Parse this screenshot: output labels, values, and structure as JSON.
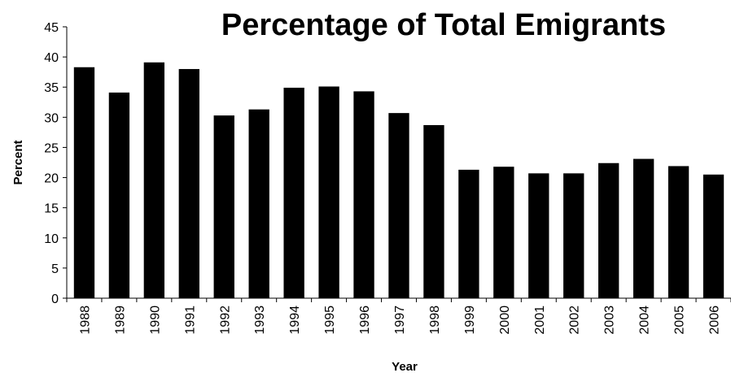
{
  "chart_data": {
    "type": "bar",
    "title": "Percentage of Total Emigrants",
    "xlabel": "Year",
    "ylabel": "Percent",
    "categories": [
      "1988",
      "1989",
      "1990",
      "1991",
      "1992",
      "1993",
      "1994",
      "1995",
      "1996",
      "1997",
      "1998",
      "1999",
      "2000",
      "2001",
      "2002",
      "2003",
      "2004",
      "2005",
      "2006"
    ],
    "values": [
      38.3,
      34.1,
      39.1,
      38.0,
      30.3,
      31.3,
      34.9,
      35.1,
      34.3,
      30.7,
      28.7,
      21.3,
      21.8,
      20.7,
      20.7,
      22.4,
      23.1,
      21.9,
      20.5
    ],
    "ylim": [
      0,
      45
    ],
    "yticks": [
      0,
      5,
      10,
      15,
      20,
      25,
      30,
      35,
      40,
      45
    ],
    "grid": false,
    "legend": "none",
    "bar_color": "#000000",
    "axis_color": "#000000"
  }
}
